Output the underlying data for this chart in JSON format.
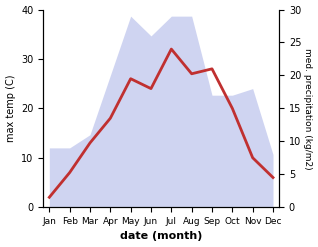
{
  "months": [
    "Jan",
    "Feb",
    "Mar",
    "Apr",
    "May",
    "Jun",
    "Jul",
    "Aug",
    "Sep",
    "Oct",
    "Nov",
    "Dec"
  ],
  "temperature": [
    2,
    7,
    13,
    18,
    26,
    24,
    32,
    27,
    28,
    20,
    10,
    6
  ],
  "precipitation": [
    9,
    9,
    11,
    20,
    29,
    26,
    29,
    29,
    17,
    17,
    18,
    8
  ],
  "temp_color": "#c03030",
  "precip_fill_color": "#b0b8e8",
  "precip_fill_alpha": 0.6,
  "ylabel_left": "max temp (C)",
  "ylabel_right": "med. precipitation (kg/m2)",
  "xlabel": "date (month)",
  "ylim_left": [
    0,
    40
  ],
  "ylim_right": [
    0,
    30
  ],
  "yticks_left": [
    0,
    10,
    20,
    30,
    40
  ],
  "yticks_right": [
    0,
    5,
    10,
    15,
    20,
    25,
    30
  ],
  "bg_color": "#ffffff"
}
